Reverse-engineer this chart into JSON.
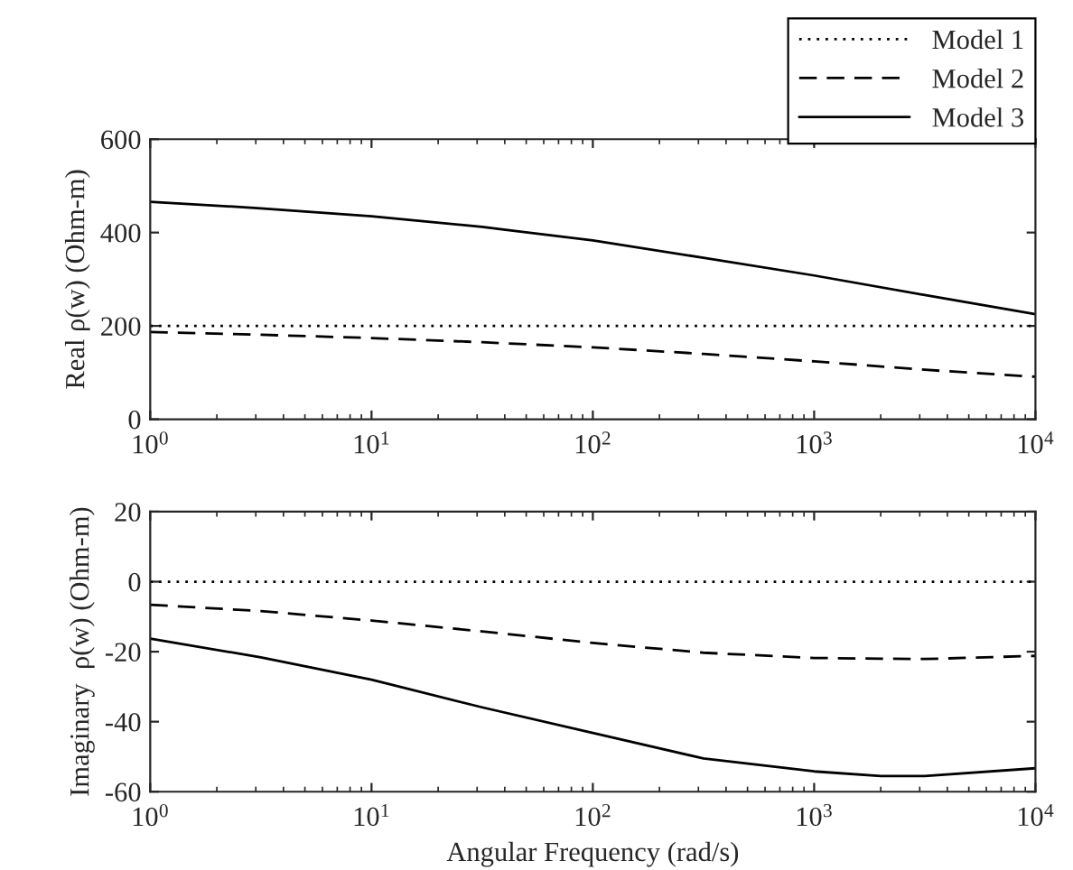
{
  "chart_data": [
    {
      "type": "line",
      "ylabel": "Real ρ(w) (Ohm-m)",
      "log": "x",
      "legend": "top right",
      "grid": false,
      "xlim": [
        1,
        10000
      ],
      "xticks": [
        {
          "value": 1,
          "label": "10$^{0}$"
        },
        {
          "value": 10,
          "label": "10$^{1}$"
        },
        {
          "value": 100,
          "label": "10$^{2}$"
        },
        {
          "value": 1000,
          "label": "10$^{3}$"
        },
        {
          "value": 10000,
          "label": "10$^{4}$"
        }
      ],
      "ylim": [
        0,
        600
      ],
      "yticks": [
        0,
        200,
        400,
        600
      ],
      "x": [
        1,
        3.16,
        10,
        31.6,
        100,
        316,
        1000,
        3162,
        10000
      ],
      "series": [
        {
          "name": "Model 1",
          "color": "#000000",
          "line_style": "dotted",
          "values": [
            200,
            200,
            200,
            200,
            200,
            200,
            200,
            200,
            200
          ]
        },
        {
          "name": "Model 2",
          "color": "#000000",
          "line_style": "dashed",
          "values": [
            187,
            181,
            174,
            165,
            154,
            140,
            124,
            106,
            91
          ]
        },
        {
          "name": "Model 3",
          "color": "#000000",
          "line_style": "solid",
          "values": [
            466,
            452,
            435,
            412,
            383,
            346,
            308,
            266,
            225
          ]
        }
      ]
    },
    {
      "type": "line",
      "xlabel": "Angular Frequency (rad/s)",
      "ylabel": "Imaginary  ρ(w) (Ohm-m)",
      "log": "x",
      "legend": false,
      "grid": false,
      "xlim": [
        1,
        10000
      ],
      "xticks": [
        {
          "value": 1,
          "label": "10$^{0}$"
        },
        {
          "value": 10,
          "label": "10$^{1}$"
        },
        {
          "value": 100,
          "label": "10$^{2}$"
        },
        {
          "value": 1000,
          "label": "10$^{3}$"
        },
        {
          "value": 10000,
          "label": "10$^{4}$"
        }
      ],
      "ylim": [
        -60,
        20
      ],
      "yticks": [
        -60,
        -40,
        -20,
        0,
        20
      ],
      "x": [
        1,
        3.16,
        10,
        31.6,
        100,
        316,
        1000,
        2000,
        3162,
        10000
      ],
      "series": [
        {
          "color": "#000000",
          "line_style": "dotted",
          "values": [
            0,
            0,
            0,
            0,
            0,
            0,
            0,
            0,
            0,
            0
          ]
        },
        {
          "color": "#000000",
          "line_style": "dashed",
          "values": [
            -6.6,
            -8.4,
            -11.1,
            -14.2,
            -17.5,
            -20.3,
            -21.8,
            -22,
            -22.1,
            -21.2
          ]
        },
        {
          "color": "#000000",
          "line_style": "solid",
          "values": [
            -16.3,
            -21.6,
            -28,
            -35.9,
            -43.2,
            -50.5,
            -54.2,
            -55.5,
            -55.5,
            -53.3
          ]
        }
      ]
    }
  ]
}
